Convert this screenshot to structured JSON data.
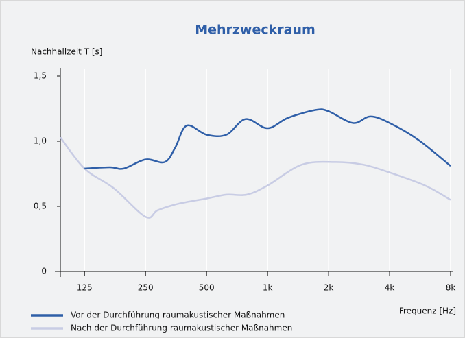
{
  "chart_data": {
    "type": "line",
    "title": "Mehrzweckraum",
    "y_label": "Nachhallzeit T [s]",
    "x_label": "Frequenz [Hz]",
    "x_scale": "log",
    "xlim": [
      95,
      8000
    ],
    "xticks": [
      125,
      250,
      500,
      {
        "value": 1000,
        "label": "1k"
      },
      {
        "value": 2000,
        "label": "2k"
      },
      {
        "value": 4000,
        "label": "4k"
      },
      {
        "value": 8000,
        "label": "8k"
      }
    ],
    "ylim": [
      0,
      1.5
    ],
    "yticks": [
      0,
      {
        "value": 0.5,
        "label": "0,5"
      },
      {
        "value": 1.0,
        "label": "1,0"
      },
      {
        "value": 1.5,
        "label": "1,5"
      }
    ],
    "grid": true,
    "legend": "bottom-left",
    "series": [
      {
        "name": "Vor der Durchführung raumakustischer Maßnahmen",
        "color": "#2f5fa8",
        "x": [
          125,
          167,
          195,
          250,
          311,
          350,
          399,
          500,
          627,
          779,
          1000,
          1263,
          1730,
          2000,
          2640,
          3216,
          4000,
          5550,
          8000
        ],
        "values": [
          0.79,
          0.8,
          0.79,
          0.86,
          0.84,
          0.95,
          1.12,
          1.05,
          1.05,
          1.17,
          1.1,
          1.18,
          1.24,
          1.23,
          1.14,
          1.19,
          1.14,
          1.01,
          0.81
        ]
      },
      {
        "name": "Nach der Durchführung raumakustischer Maßnahmen",
        "color": "#c8cce4",
        "x": [
          95,
          125,
          174,
          250,
          287,
          363,
          500,
          627,
          790,
          1000,
          1475,
          2180,
          2970,
          4000,
          5990,
          8000
        ],
        "values": [
          1.03,
          0.79,
          0.64,
          0.42,
          0.47,
          0.52,
          0.56,
          0.59,
          0.59,
          0.66,
          0.82,
          0.84,
          0.82,
          0.76,
          0.66,
          0.55
        ]
      }
    ]
  }
}
